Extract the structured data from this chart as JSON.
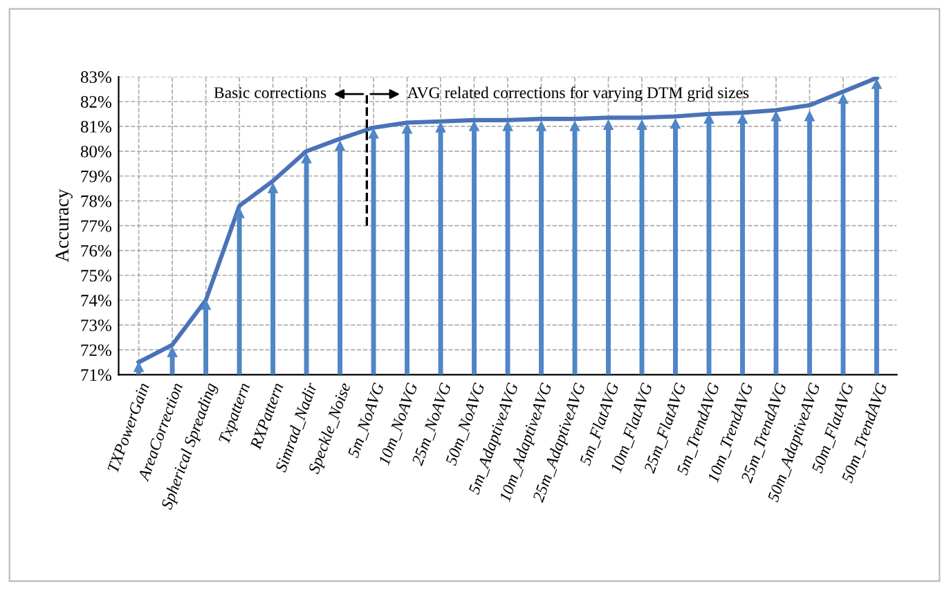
{
  "chart_data": {
    "type": "lollipop",
    "ylabel": "Accuracy",
    "categories": [
      "TXPowerGain",
      "AreaCorrection",
      "Spherical Spreading",
      "Txpattern",
      "RXPattern",
      "Simrad_Nadir",
      "Speckle_Noise",
      "5m_NoAVG",
      "10m_NoAVG",
      "25m_NoAVG",
      "50m_NoAVG",
      "5m_AdaptiveAVG",
      "10m_AdaptiveAVG",
      "25m_AdaptiveAVG",
      "5m_FlatAVG",
      "10m_FlatAVG",
      "25m_FlatAVG",
      "5m_TrendAVG",
      "10m_TrendAVG",
      "25m_TrendAVG",
      "50m_AdaptiveAVG",
      "50m_FlatAVG",
      "50m_TrendAVG"
    ],
    "series": [
      {
        "color": "#4f86c6",
        "marker": "triangle",
        "values": [
          71.3,
          71.9,
          73.8,
          77.5,
          78.5,
          79.7,
          80.2,
          80.7,
          80.9,
          80.95,
          81.0,
          81.0,
          81.0,
          81.0,
          81.05,
          81.05,
          81.1,
          81.3,
          81.3,
          81.4,
          81.4,
          82.1,
          82.7
        ]
      },
      {
        "type": "line",
        "color": "#4a72b8",
        "marker": "none",
        "values": [
          71.5,
          72.2,
          74.0,
          77.8,
          78.8,
          80.0,
          80.5,
          80.95,
          81.15,
          81.2,
          81.25,
          81.25,
          81.3,
          81.3,
          81.35,
          81.35,
          81.4,
          81.5,
          81.55,
          81.65,
          81.85,
          82.4,
          82.95
        ]
      }
    ],
    "ylim": [
      71,
      83
    ],
    "yticks": [
      {
        "value": 71,
        "label": "71%"
      },
      {
        "value": 72,
        "label": "72%"
      },
      {
        "value": 73,
        "label": "73%"
      },
      {
        "value": 74,
        "label": "74%"
      },
      {
        "value": 75,
        "label": "75%"
      },
      {
        "value": 76,
        "label": "76%"
      },
      {
        "value": 77,
        "label": "77%"
      },
      {
        "value": 78,
        "label": "78%"
      },
      {
        "value": 79,
        "label": "79%"
      },
      {
        "value": 80,
        "label": "80%"
      },
      {
        "value": 81,
        "label": "81%"
      },
      {
        "value": 82,
        "label": "82%"
      },
      {
        "value": 83,
        "label": "83%"
      }
    ],
    "grid": true,
    "line_style": "solid",
    "annotations": [
      "Basic corrections",
      "AVG related corrections for varying DTM grid sizes"
    ]
  }
}
